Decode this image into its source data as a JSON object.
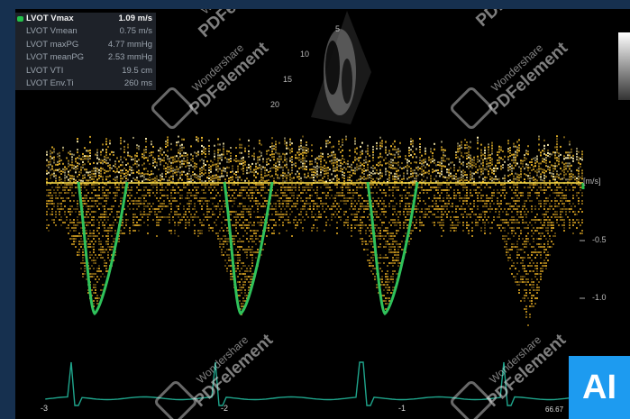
{
  "measurements": [
    {
      "label": "LVOT Vmax",
      "value": "1.09 m/s",
      "active": true
    },
    {
      "label": "LVOT Vmean",
      "value": "0.75 m/s",
      "active": false
    },
    {
      "label": "LVOT maxPG",
      "value": "4.77 mmHg",
      "active": false
    },
    {
      "label": "LVOT meanPG",
      "value": "2.53 mmHg",
      "active": false
    },
    {
      "label": "LVOT VTI",
      "value": "19.5 cm",
      "active": false
    },
    {
      "label": "LVOT Env.Ti",
      "value": "260 ms",
      "active": false
    }
  ],
  "depth_labels": [
    "5",
    "10",
    "15",
    "20"
  ],
  "velocity_unit": "[m/s]",
  "velocity_ticks": [
    "-0.5",
    "-1.0"
  ],
  "time_ticks": [
    "-3",
    "-2",
    "-1"
  ],
  "heart_rate": "66.67",
  "watermark": {
    "line1": "Wondershare",
    "line2": "PDFelement"
  },
  "badge": "AI",
  "colors": {
    "background": "#000000",
    "doppler": "#e8b52a",
    "trace": "#2fc25b",
    "ecg": "#1fa58c",
    "frame": "#16304f",
    "badge": "#1d9bf0"
  }
}
